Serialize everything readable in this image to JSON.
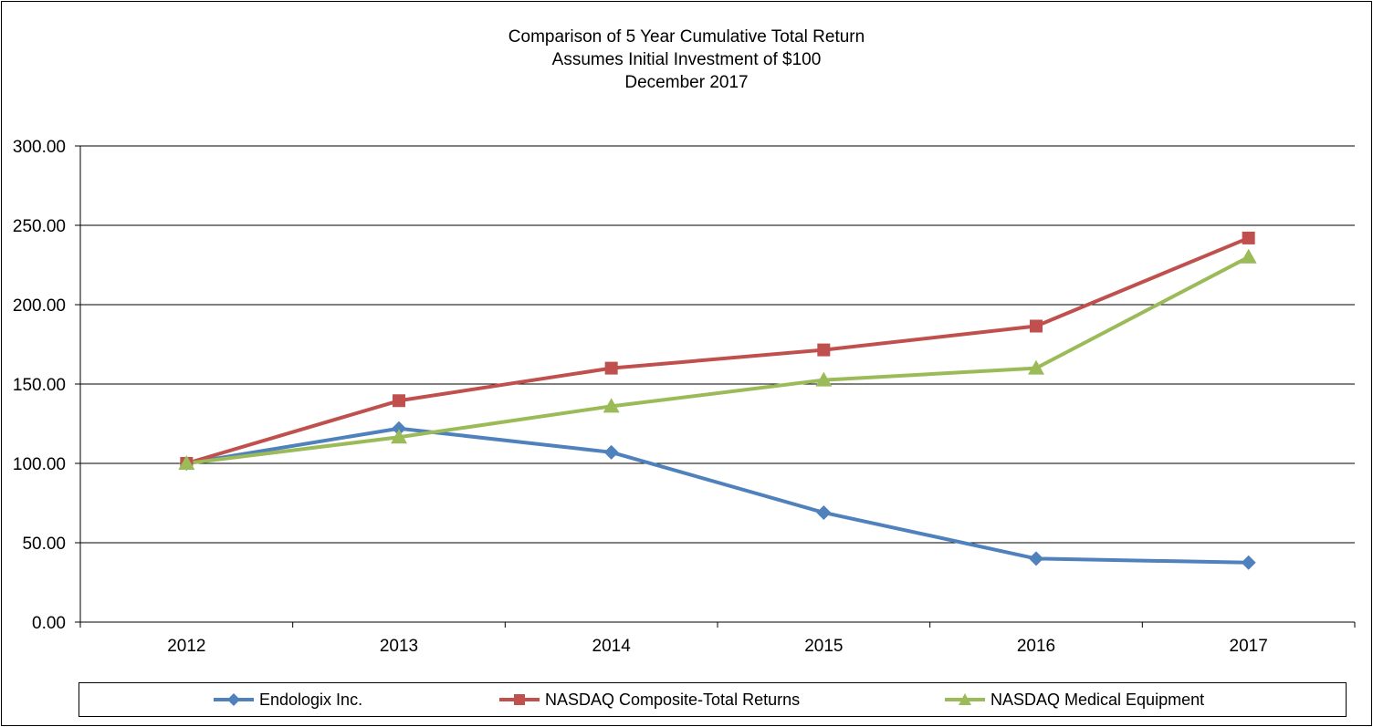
{
  "chart_data": {
    "type": "line",
    "title_lines": [
      "Comparison of 5 Year Cumulative Total Return",
      "Assumes Initial Investment of $100",
      "December 2017"
    ],
    "categories": [
      "2012",
      "2013",
      "2014",
      "2015",
      "2016",
      "2017"
    ],
    "ylim": [
      0,
      300
    ],
    "yticks": [
      0,
      50,
      100,
      150,
      200,
      250,
      300
    ],
    "ytick_labels": [
      "0.00",
      "50.00",
      "100.00",
      "150.00",
      "200.00",
      "250.00",
      "300.00"
    ],
    "grid": true,
    "legend_position": "bottom",
    "series": [
      {
        "name": "Endologix Inc.",
        "color": "#4F81BD",
        "marker": "diamond",
        "values": [
          100.0,
          122.0,
          107.0,
          69.0,
          40.0,
          37.5
        ]
      },
      {
        "name": "NASDAQ Composite-Total Returns",
        "color": "#C0504D",
        "marker": "square",
        "values": [
          100.0,
          139.5,
          160.0,
          171.5,
          186.5,
          242.0
        ]
      },
      {
        "name": "NASDAQ Medical Equipment",
        "color": "#9BBB59",
        "marker": "triangle",
        "values": [
          100.0,
          116.5,
          136.0,
          152.5,
          160.0,
          230.0
        ]
      }
    ]
  }
}
